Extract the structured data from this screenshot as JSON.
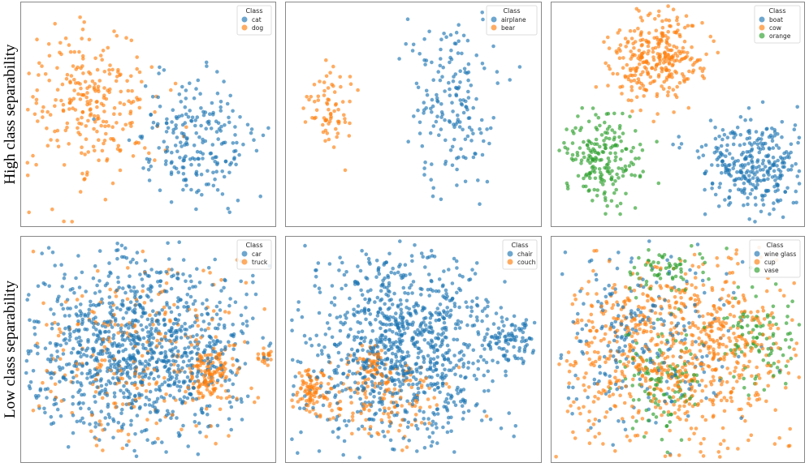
{
  "row_labels": [
    "High class separability",
    "Low class separability"
  ],
  "colors": [
    "#1f77b4",
    "#ff7f0e",
    "#2ca02c"
  ],
  "chart_data": [
    {
      "type": "scatter",
      "title": "",
      "legend_title": "Class",
      "legend_position": "top-right",
      "xlim": [
        0,
        100
      ],
      "ylim": [
        0,
        100
      ],
      "grid": false,
      "classes": [
        "cat",
        "dog"
      ],
      "clusters": [
        {
          "class": 1,
          "cx": 28,
          "cy": 55,
          "sx": 13,
          "sy": 17,
          "n": 260
        },
        {
          "class": 0,
          "cx": 67,
          "cy": 38,
          "sx": 11,
          "sy": 14,
          "n": 220
        }
      ]
    },
    {
      "type": "scatter",
      "title": "",
      "legend_title": "Class",
      "legend_position": "top-right",
      "xlim": [
        0,
        100
      ],
      "ylim": [
        0,
        100
      ],
      "grid": false,
      "classes": [
        "airplane",
        "bear"
      ],
      "clusters": [
        {
          "class": 0,
          "cx": 65,
          "cy": 55,
          "sx": 9,
          "sy": 20,
          "n": 180
        },
        {
          "class": 1,
          "cx": 17,
          "cy": 52,
          "sx": 5,
          "sy": 10,
          "n": 70
        }
      ]
    },
    {
      "type": "scatter",
      "title": "",
      "legend_title": "Class",
      "legend_position": "top-right",
      "xlim": [
        0,
        100
      ],
      "ylim": [
        0,
        100
      ],
      "grid": false,
      "classes": [
        "boat",
        "cow",
        "orange"
      ],
      "clusters": [
        {
          "class": 1,
          "cx": 42,
          "cy": 75,
          "sx": 9,
          "sy": 9,
          "n": 300
        },
        {
          "class": 0,
          "cx": 80,
          "cy": 28,
          "sx": 11,
          "sy": 10,
          "n": 330
        },
        {
          "class": 2,
          "cx": 20,
          "cy": 30,
          "sx": 8,
          "sy": 10,
          "n": 200
        }
      ]
    },
    {
      "type": "scatter",
      "title": "",
      "legend_title": "Class",
      "legend_position": "top-right",
      "xlim": [
        0,
        100
      ],
      "ylim": [
        0,
        100
      ],
      "grid": false,
      "classes": [
        "car",
        "truck"
      ],
      "clusters": [
        {
          "class": 0,
          "cx": 46,
          "cy": 50,
          "sx": 22,
          "sy": 20,
          "n": 1100
        },
        {
          "class": 1,
          "cx": 46,
          "cy": 48,
          "sx": 22,
          "sy": 20,
          "n": 250
        },
        {
          "class": 1,
          "cx": 75,
          "cy": 38,
          "sx": 5,
          "sy": 6,
          "n": 120
        },
        {
          "class": 1,
          "cx": 96,
          "cy": 47,
          "sx": 1.5,
          "sy": 1.5,
          "n": 20
        }
      ]
    },
    {
      "type": "scatter",
      "title": "",
      "legend_title": "Class",
      "legend_position": "top-right",
      "xlim": [
        0,
        100
      ],
      "ylim": [
        0,
        100
      ],
      "grid": false,
      "classes": [
        "chair",
        "couch"
      ],
      "clusters": [
        {
          "class": 0,
          "cx": 45,
          "cy": 50,
          "sx": 19,
          "sy": 22,
          "n": 1000
        },
        {
          "class": 0,
          "cx": 88,
          "cy": 55,
          "sx": 5,
          "sy": 6,
          "n": 80
        },
        {
          "class": 1,
          "cx": 10,
          "cy": 33,
          "sx": 4,
          "sy": 5,
          "n": 80
        },
        {
          "class": 1,
          "cx": 33,
          "cy": 45,
          "sx": 3,
          "sy": 3,
          "n": 40
        },
        {
          "class": 1,
          "cx": 40,
          "cy": 28,
          "sx": 15,
          "sy": 8,
          "n": 150
        }
      ]
    },
    {
      "type": "scatter",
      "title": "",
      "legend_title": "Class",
      "legend_position": "top-right",
      "xlim": [
        0,
        100
      ],
      "ylim": [
        0,
        100
      ],
      "grid": false,
      "classes": [
        "wine glass",
        "cup",
        "vase"
      ],
      "clusters": [
        {
          "class": 1,
          "cx": 50,
          "cy": 50,
          "sx": 25,
          "sy": 20,
          "n": 800
        },
        {
          "class": 0,
          "cx": 35,
          "cy": 55,
          "sx": 20,
          "sy": 20,
          "n": 250
        },
        {
          "class": 2,
          "cx": 45,
          "cy": 35,
          "sx": 7,
          "sy": 12,
          "n": 110
        },
        {
          "class": 2,
          "cx": 45,
          "cy": 85,
          "sx": 8,
          "sy": 5,
          "n": 60
        },
        {
          "class": 2,
          "cx": 82,
          "cy": 55,
          "sx": 8,
          "sy": 10,
          "n": 100
        }
      ]
    }
  ]
}
